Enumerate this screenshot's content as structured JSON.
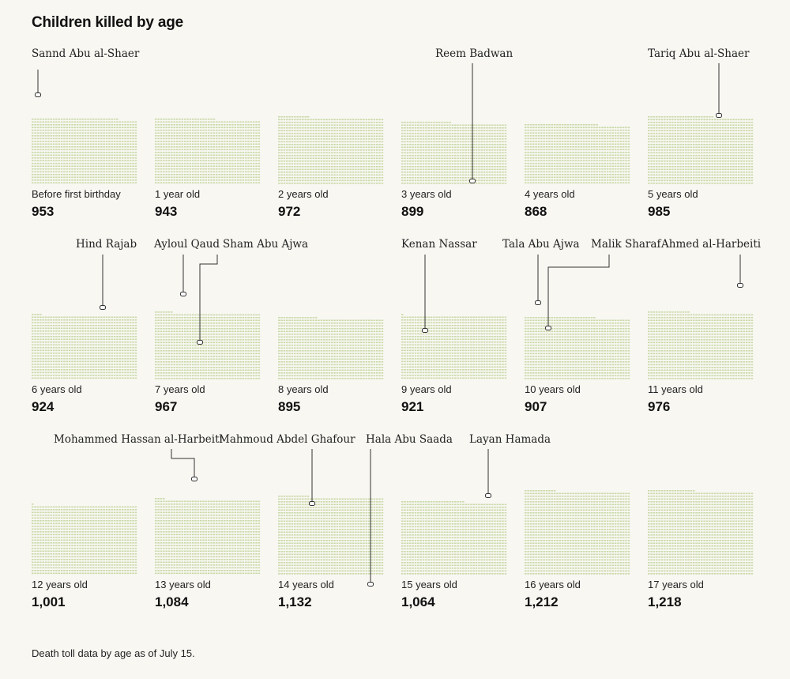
{
  "title": "Children killed by age",
  "footnote": "Death toll data by age as of July 15.",
  "colors": {
    "mark": "#c9d9a8",
    "line": "#333333",
    "background": "#f8f7f2"
  },
  "chart_data": {
    "type": "waffle",
    "title": "Children killed by age",
    "unit": "child",
    "categories": [
      "Before first birthday",
      "1 year old",
      "2 years old",
      "3 years old",
      "4 years old",
      "5 years old",
      "6 years old",
      "7 years old",
      "8 years old",
      "9 years old",
      "10 years old",
      "11 years old",
      "12 years old",
      "13 years old",
      "14 years old",
      "15 years old",
      "16 years old",
      "17 years old"
    ],
    "values": [
      953,
      943,
      972,
      899,
      868,
      985,
      924,
      967,
      895,
      921,
      907,
      976,
      1001,
      1084,
      1132,
      1064,
      1212,
      1218
    ],
    "counts_display": [
      "953",
      "943",
      "972",
      "899",
      "868",
      "985",
      "924",
      "967",
      "895",
      "921",
      "907",
      "976",
      "1,001",
      "1,084",
      "1,132",
      "1,064",
      "1,212",
      "1,218"
    ],
    "callouts": [
      {
        "name": "Sannd Abu al-Shaer",
        "age_index": 0
      },
      {
        "name": "Reem Badwan",
        "age_index": 3
      },
      {
        "name": "Tariq Abu al-Shaer",
        "age_index": 5
      },
      {
        "name": "Hind Rajab",
        "age_index": 6
      },
      {
        "name": "Ayloul Qaud",
        "age_index": 7
      },
      {
        "name": "Sham Abu Ajwa",
        "age_index": 7
      },
      {
        "name": "Kenan Nassar",
        "age_index": 9
      },
      {
        "name": "Tala Abu Ajwa",
        "age_index": 10
      },
      {
        "name": "Malik Sharaf",
        "age_index": 10
      },
      {
        "name": "Ahmed al-Harbeiti",
        "age_index": 11
      },
      {
        "name": "Mohammed Hassan al-Harbeiti",
        "age_index": 13
      },
      {
        "name": "Mahmoud Abdel Ghafour",
        "age_index": 14
      },
      {
        "name": "Hala Abu Saada",
        "age_index": 14
      },
      {
        "name": "Layan Hamada",
        "age_index": 15
      }
    ]
  }
}
